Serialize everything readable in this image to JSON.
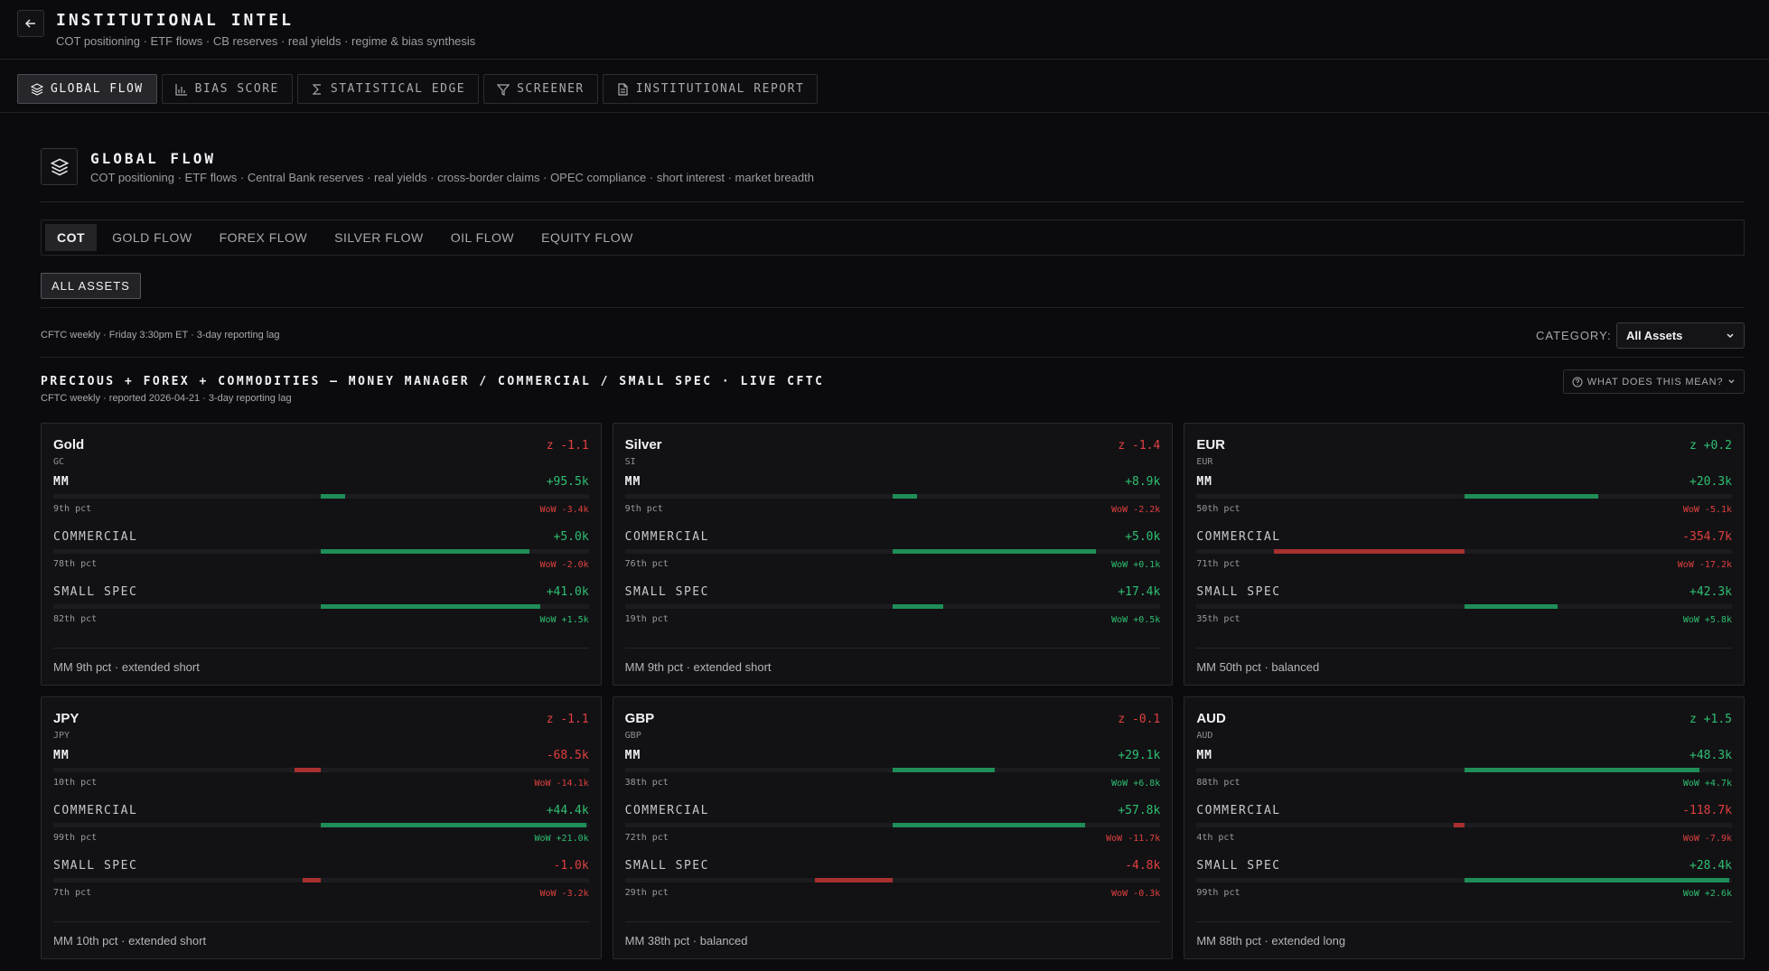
{
  "header": {
    "title": "INSTITUTIONAL INTEL",
    "subtitle": "COT positioning · ETF flows · CB reserves · real yields · regime & bias synthesis"
  },
  "nav": [
    {
      "label": "GLOBAL FLOW",
      "icon": "layers-icon",
      "active": true
    },
    {
      "label": "BIAS SCORE",
      "icon": "bar-chart-icon",
      "active": false
    },
    {
      "label": "STATISTICAL EDGE",
      "icon": "sigma-icon",
      "active": false
    },
    {
      "label": "SCREENER",
      "icon": "filter-icon",
      "active": false
    },
    {
      "label": "INSTITUTIONAL REPORT",
      "icon": "document-icon",
      "active": false
    }
  ],
  "section": {
    "title": "GLOBAL FLOW",
    "subtitle": "COT positioning · ETF flows · Central Bank reserves · real yields · cross-border claims · OPEC compliance · short interest · market breadth"
  },
  "subtabs": [
    {
      "label": "COT",
      "active": true
    },
    {
      "label": "GOLD FLOW",
      "active": false
    },
    {
      "label": "FOREX FLOW",
      "active": false
    },
    {
      "label": "SILVER FLOW",
      "active": false
    },
    {
      "label": "OIL FLOW",
      "active": false
    },
    {
      "label": "EQUITY FLOW",
      "active": false
    }
  ],
  "filter_button": "ALL ASSETS",
  "source_note": "CFTC weekly · Friday 3:30pm ET · 3-day reporting lag",
  "category": {
    "label": "CATEGORY:",
    "value": "All Assets"
  },
  "grid": {
    "title": "PRECIOUS + FOREX + COMMODITIES — MONEY MANAGER / COMMERCIAL / SMALL SPEC · LIVE CFTC",
    "subtitle": "CFTC weekly · reported 2026-04-21 · 3-day reporting lag",
    "help_label": "WHAT DOES THIS MEAN?"
  },
  "colors": {
    "positive": "#2fbf71",
    "negative": "#e0403e",
    "bar_positive": "#1f8e58",
    "bar_negative": "#a8302f"
  },
  "cards": [
    {
      "name": "Gold",
      "code": "GC",
      "z": "z -1.1",
      "z_sign": "neg",
      "rows": [
        {
          "label": "MM",
          "value": "+95.5k",
          "pct": "9th pct",
          "wow": "WoW -3.4k",
          "bar": 0.09
        },
        {
          "label": "COMMERCIAL",
          "value": "+5.0k",
          "pct": "78th pct",
          "wow": "WoW -2.0k",
          "bar": 0.78
        },
        {
          "label": "SMALL SPEC",
          "value": "+41.0k",
          "pct": "82th pct",
          "wow": "WoW +1.5k",
          "bar": 0.82
        }
      ],
      "footer": "MM 9th pct · extended short"
    },
    {
      "name": "Silver",
      "code": "SI",
      "z": "z -1.4",
      "z_sign": "neg",
      "rows": [
        {
          "label": "MM",
          "value": "+8.9k",
          "pct": "9th pct",
          "wow": "WoW -2.2k",
          "bar": 0.09
        },
        {
          "label": "COMMERCIAL",
          "value": "+5.0k",
          "pct": "76th pct",
          "wow": "WoW +0.1k",
          "bar": 0.76
        },
        {
          "label": "SMALL SPEC",
          "value": "+17.4k",
          "pct": "19th pct",
          "wow": "WoW +0.5k",
          "bar": 0.19
        }
      ],
      "footer": "MM 9th pct · extended short"
    },
    {
      "name": "EUR",
      "code": "EUR",
      "z": "z +0.2",
      "z_sign": "pos",
      "rows": [
        {
          "label": "MM",
          "value": "+20.3k",
          "pct": "50th pct",
          "wow": "WoW -5.1k",
          "bar": 0.5
        },
        {
          "label": "COMMERCIAL",
          "value": "-354.7k",
          "pct": "71th pct",
          "wow": "WoW -17.2k",
          "bar": -0.71
        },
        {
          "label": "SMALL SPEC",
          "value": "+42.3k",
          "pct": "35th pct",
          "wow": "WoW +5.8k",
          "bar": 0.35
        }
      ],
      "footer": "MM 50th pct · balanced"
    },
    {
      "name": "JPY",
      "code": "JPY",
      "z": "z -1.1",
      "z_sign": "neg",
      "rows": [
        {
          "label": "MM",
          "value": "-68.5k",
          "pct": "10th pct",
          "wow": "WoW -14.1k",
          "bar": -0.1
        },
        {
          "label": "COMMERCIAL",
          "value": "+44.4k",
          "pct": "99th pct",
          "wow": "WoW +21.0k",
          "bar": 0.99
        },
        {
          "label": "SMALL SPEC",
          "value": "-1.0k",
          "pct": "7th pct",
          "wow": "WoW -3.2k",
          "bar": -0.07
        }
      ],
      "footer": "MM 10th pct · extended short"
    },
    {
      "name": "GBP",
      "code": "GBP",
      "z": "z -0.1",
      "z_sign": "neg",
      "rows": [
        {
          "label": "MM",
          "value": "+29.1k",
          "pct": "38th pct",
          "wow": "WoW +6.8k",
          "bar": 0.38
        },
        {
          "label": "COMMERCIAL",
          "value": "+57.8k",
          "pct": "72th pct",
          "wow": "WoW -11.7k",
          "bar": 0.72
        },
        {
          "label": "SMALL SPEC",
          "value": "-4.8k",
          "pct": "29th pct",
          "wow": "WoW -0.3k",
          "bar": -0.29
        }
      ],
      "footer": "MM 38th pct · balanced"
    },
    {
      "name": "AUD",
      "code": "AUD",
      "z": "z +1.5",
      "z_sign": "pos",
      "rows": [
        {
          "label": "MM",
          "value": "+48.3k",
          "pct": "88th pct",
          "wow": "WoW +4.7k",
          "bar": 0.88
        },
        {
          "label": "COMMERCIAL",
          "value": "-118.7k",
          "pct": "4th pct",
          "wow": "WoW -7.9k",
          "bar": -0.04
        },
        {
          "label": "SMALL SPEC",
          "value": "+28.4k",
          "pct": "99th pct",
          "wow": "WoW +2.6k",
          "bar": 0.99
        }
      ],
      "footer": "MM 88th pct · extended long"
    }
  ]
}
